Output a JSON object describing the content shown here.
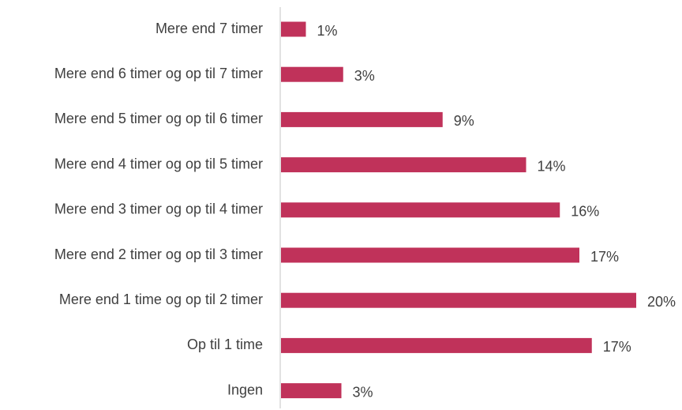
{
  "chart_data": {
    "type": "bar",
    "orientation": "horizontal",
    "categories": [
      "Mere end 7 timer",
      "Mere end 6 timer og op til 7 timer",
      "Mere end 5 timer og op til 6 timer",
      "Mere end 4 timer og op til 5 timer",
      "Mere end 3 timer og op til 4 timer",
      "Mere end 2 timer og op til 3 timer",
      "Mere end 1 time og op til 2 timer",
      "Op til 1 time",
      "Ingen"
    ],
    "values": [
      1.4,
      3.5,
      9.1,
      13.8,
      15.7,
      16.8,
      20.0,
      17.5,
      3.4
    ],
    "value_labels": [
      "1%",
      "3%",
      "9%",
      "14%",
      "16%",
      "17%",
      "20%",
      "17%",
      "3%"
    ],
    "title": "",
    "xlabel": "",
    "ylabel": "",
    "xlim": [
      0,
      20
    ],
    "grid": false,
    "legend": "none",
    "colors": {
      "bar": "#c0325a",
      "axis": "#d9d9d9",
      "text": "#3f3f3f"
    }
  }
}
